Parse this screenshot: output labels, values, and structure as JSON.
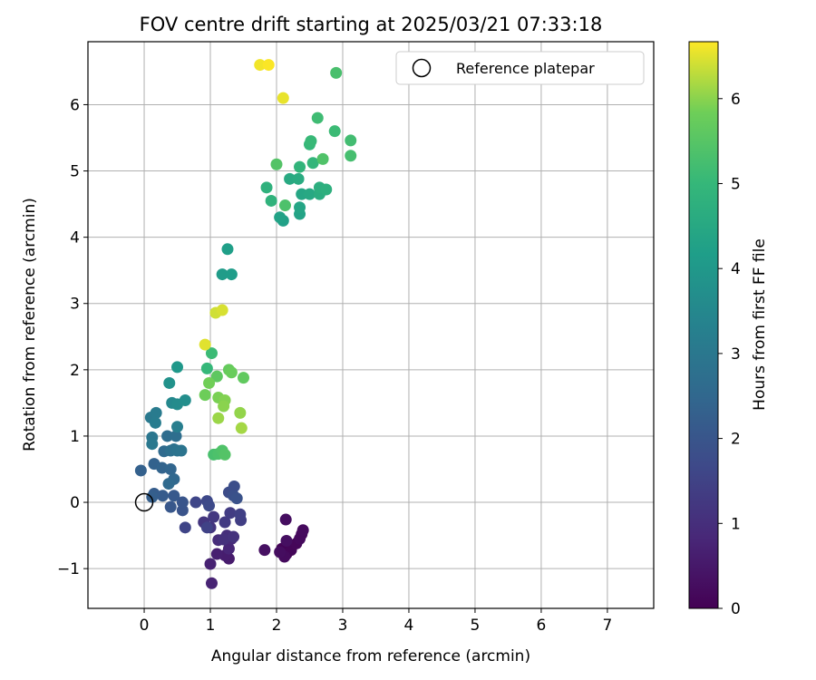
{
  "chart_data": {
    "type": "scatter",
    "title": "FOV centre drift starting at 2025/03/21 07:33:18",
    "xlabel": "Angular distance from reference (arcmin)",
    "ylabel": "Rotation from reference (arcmin)",
    "xlim": [
      -0.85,
      7.7
    ],
    "ylim": [
      -1.6,
      6.95
    ],
    "xticks": [
      0,
      1,
      2,
      3,
      4,
      5,
      6,
      7
    ],
    "yticks": [
      -1,
      0,
      1,
      2,
      3,
      4,
      5,
      6
    ],
    "grid": true,
    "legend": {
      "placement": "top-right",
      "entries": [
        "Reference platepar"
      ]
    },
    "reference_point": {
      "x": 0,
      "y": 0,
      "label": "Reference platepar"
    },
    "colorbar": {
      "label": "Hours from first FF file",
      "colormap": "viridis",
      "range": [
        0,
        6.67
      ],
      "ticks": [
        0,
        1,
        2,
        3,
        4,
        5,
        6
      ]
    },
    "points": [
      {
        "x": 2.08,
        "y": -0.7,
        "c": 0.05
      },
      {
        "x": 2.15,
        "y": -0.78,
        "c": 0.08
      },
      {
        "x": 2.22,
        "y": -0.72,
        "c": 0.1
      },
      {
        "x": 2.3,
        "y": -0.62,
        "c": 0.12
      },
      {
        "x": 2.38,
        "y": -0.48,
        "c": 0.15
      },
      {
        "x": 2.35,
        "y": -0.55,
        "c": 0.18
      },
      {
        "x": 2.4,
        "y": -0.42,
        "c": 0.2
      },
      {
        "x": 2.12,
        "y": -0.82,
        "c": 0.22
      },
      {
        "x": 2.05,
        "y": -0.75,
        "c": 0.25
      },
      {
        "x": 2.14,
        "y": -0.26,
        "c": 0.28
      },
      {
        "x": 2.15,
        "y": -0.58,
        "c": 0.3
      },
      {
        "x": 1.82,
        "y": -0.72,
        "c": 0.33
      },
      {
        "x": 1.28,
        "y": -0.85,
        "c": 0.55
      },
      {
        "x": 1.22,
        "y": -0.8,
        "c": 0.6
      },
      {
        "x": 1.1,
        "y": -0.78,
        "c": 0.65
      },
      {
        "x": 1.0,
        "y": -0.93,
        "c": 0.7
      },
      {
        "x": 1.02,
        "y": -1.22,
        "c": 0.75
      },
      {
        "x": 1.28,
        "y": -0.7,
        "c": 0.8
      },
      {
        "x": 1.32,
        "y": -0.55,
        "c": 0.9
      },
      {
        "x": 1.12,
        "y": -0.57,
        "c": 0.95
      },
      {
        "x": 1.25,
        "y": -0.5,
        "c": 1.0
      },
      {
        "x": 1.2,
        "y": -0.56,
        "c": 1.05
      },
      {
        "x": 1.35,
        "y": -0.52,
        "c": 1.1
      },
      {
        "x": 1.0,
        "y": -0.38,
        "c": 1.15
      },
      {
        "x": 0.9,
        "y": -0.3,
        "c": 1.2
      },
      {
        "x": 1.05,
        "y": -0.22,
        "c": 1.25
      },
      {
        "x": 1.22,
        "y": -0.3,
        "c": 1.3
      },
      {
        "x": 1.3,
        "y": -0.16,
        "c": 1.35
      },
      {
        "x": 1.46,
        "y": -0.27,
        "c": 1.4
      },
      {
        "x": 1.45,
        "y": -0.18,
        "c": 1.45
      },
      {
        "x": 0.95,
        "y": -0.38,
        "c": 1.5
      },
      {
        "x": 0.62,
        "y": -0.38,
        "c": 1.55
      },
      {
        "x": 0.78,
        "y": 0.0,
        "c": 1.6
      },
      {
        "x": 0.95,
        "y": 0.02,
        "c": 1.65
      },
      {
        "x": 0.98,
        "y": -0.05,
        "c": 1.7
      },
      {
        "x": 1.28,
        "y": 0.15,
        "c": 1.75
      },
      {
        "x": 1.36,
        "y": 0.24,
        "c": 1.8
      },
      {
        "x": 1.35,
        "y": 0.1,
        "c": 1.85
      },
      {
        "x": 1.4,
        "y": 0.06,
        "c": 1.9
      },
      {
        "x": 0.58,
        "y": -0.12,
        "c": 1.95
      },
      {
        "x": 0.58,
        "y": 0.0,
        "c": 2.0
      },
      {
        "x": 0.4,
        "y": -0.07,
        "c": 2.05
      },
      {
        "x": 0.45,
        "y": 0.1,
        "c": 2.1
      },
      {
        "x": 0.28,
        "y": 0.1,
        "c": 2.15
      },
      {
        "x": 0.15,
        "y": 0.13,
        "c": 2.2
      },
      {
        "x": 0.12,
        "y": 0.08,
        "c": 2.25
      },
      {
        "x": -0.05,
        "y": 0.48,
        "c": 2.3
      },
      {
        "x": 0.15,
        "y": 0.58,
        "c": 2.35
      },
      {
        "x": 0.27,
        "y": 0.52,
        "c": 2.4
      },
      {
        "x": 0.4,
        "y": 0.5,
        "c": 2.45
      },
      {
        "x": 0.45,
        "y": 0.35,
        "c": 2.5
      },
      {
        "x": 0.37,
        "y": 0.28,
        "c": 2.55
      },
      {
        "x": 0.3,
        "y": 0.77,
        "c": 2.6
      },
      {
        "x": 0.35,
        "y": 1.0,
        "c": 2.65
      },
      {
        "x": 0.48,
        "y": 1.0,
        "c": 2.7
      },
      {
        "x": 0.4,
        "y": 0.78,
        "c": 2.75
      },
      {
        "x": 0.45,
        "y": 0.8,
        "c": 2.8
      },
      {
        "x": 0.5,
        "y": 0.78,
        "c": 2.85
      },
      {
        "x": 0.56,
        "y": 0.78,
        "c": 2.9
      },
      {
        "x": 0.12,
        "y": 0.98,
        "c": 2.95
      },
      {
        "x": 0.12,
        "y": 0.88,
        "c": 3.0
      },
      {
        "x": 0.1,
        "y": 1.28,
        "c": 3.05
      },
      {
        "x": 0.18,
        "y": 1.35,
        "c": 3.1
      },
      {
        "x": 0.17,
        "y": 1.2,
        "c": 3.15
      },
      {
        "x": 0.5,
        "y": 1.14,
        "c": 3.2
      },
      {
        "x": 0.42,
        "y": 1.5,
        "c": 3.5
      },
      {
        "x": 0.5,
        "y": 1.48,
        "c": 3.6
      },
      {
        "x": 0.62,
        "y": 1.54,
        "c": 3.7
      },
      {
        "x": 0.38,
        "y": 1.8,
        "c": 3.8
      },
      {
        "x": 0.5,
        "y": 2.04,
        "c": 4.0
      },
      {
        "x": 1.18,
        "y": 3.44,
        "c": 4.1
      },
      {
        "x": 1.32,
        "y": 3.44,
        "c": 4.15
      },
      {
        "x": 1.26,
        "y": 3.82,
        "c": 4.2
      },
      {
        "x": 2.1,
        "y": 4.25,
        "c": 4.25
      },
      {
        "x": 2.05,
        "y": 4.3,
        "c": 4.3
      },
      {
        "x": 2.35,
        "y": 4.35,
        "c": 4.35
      },
      {
        "x": 2.35,
        "y": 4.45,
        "c": 4.4
      },
      {
        "x": 2.38,
        "y": 4.65,
        "c": 4.45
      },
      {
        "x": 2.5,
        "y": 4.65,
        "c": 4.5
      },
      {
        "x": 2.2,
        "y": 4.88,
        "c": 4.55
      },
      {
        "x": 2.33,
        "y": 4.88,
        "c": 4.6
      },
      {
        "x": 2.65,
        "y": 4.65,
        "c": 4.65
      },
      {
        "x": 2.65,
        "y": 4.75,
        "c": 4.7
      },
      {
        "x": 2.75,
        "y": 4.72,
        "c": 4.75
      },
      {
        "x": 1.85,
        "y": 4.75,
        "c": 4.8
      },
      {
        "x": 1.92,
        "y": 4.55,
        "c": 4.85
      },
      {
        "x": 2.35,
        "y": 5.06,
        "c": 4.9
      },
      {
        "x": 2.55,
        "y": 5.12,
        "c": 4.95
      },
      {
        "x": 2.5,
        "y": 5.4,
        "c": 5.0
      },
      {
        "x": 2.52,
        "y": 5.45,
        "c": 5.05
      },
      {
        "x": 2.88,
        "y": 5.6,
        "c": 5.1
      },
      {
        "x": 2.62,
        "y": 5.8,
        "c": 5.15
      },
      {
        "x": 3.12,
        "y": 5.46,
        "c": 5.2
      },
      {
        "x": 3.12,
        "y": 5.23,
        "c": 5.25
      },
      {
        "x": 2.9,
        "y": 6.48,
        "c": 5.3
      },
      {
        "x": 2.13,
        "y": 4.48,
        "c": 5.35
      },
      {
        "x": 2.7,
        "y": 5.18,
        "c": 5.4
      },
      {
        "x": 2.0,
        "y": 5.1,
        "c": 5.45
      },
      {
        "x": 0.95,
        "y": 2.02,
        "c": 5.0
      },
      {
        "x": 1.02,
        "y": 2.25,
        "c": 5.1
      },
      {
        "x": 1.05,
        "y": 0.72,
        "c": 5.3
      },
      {
        "x": 1.12,
        "y": 0.73,
        "c": 5.35
      },
      {
        "x": 1.18,
        "y": 0.78,
        "c": 5.4
      },
      {
        "x": 1.22,
        "y": 0.72,
        "c": 5.45
      },
      {
        "x": 1.1,
        "y": 1.9,
        "c": 5.6
      },
      {
        "x": 1.5,
        "y": 1.88,
        "c": 5.65
      },
      {
        "x": 1.28,
        "y": 2.0,
        "c": 5.7
      },
      {
        "x": 1.32,
        "y": 1.96,
        "c": 5.75
      },
      {
        "x": 0.92,
        "y": 1.62,
        "c": 5.8
      },
      {
        "x": 0.98,
        "y": 1.8,
        "c": 5.85
      },
      {
        "x": 1.12,
        "y": 1.58,
        "c": 5.9
      },
      {
        "x": 1.22,
        "y": 1.54,
        "c": 5.95
      },
      {
        "x": 1.2,
        "y": 1.45,
        "c": 6.0
      },
      {
        "x": 1.45,
        "y": 1.35,
        "c": 6.05
      },
      {
        "x": 1.12,
        "y": 1.27,
        "c": 6.1
      },
      {
        "x": 1.47,
        "y": 1.12,
        "c": 6.15
      },
      {
        "x": 1.08,
        "y": 2.86,
        "c": 6.4
      },
      {
        "x": 1.18,
        "y": 2.9,
        "c": 6.45
      },
      {
        "x": 0.92,
        "y": 2.38,
        "c": 6.5
      },
      {
        "x": 2.1,
        "y": 6.1,
        "c": 6.55
      },
      {
        "x": 1.75,
        "y": 6.6,
        "c": 6.6
      },
      {
        "x": 1.88,
        "y": 6.6,
        "c": 6.65
      }
    ]
  }
}
